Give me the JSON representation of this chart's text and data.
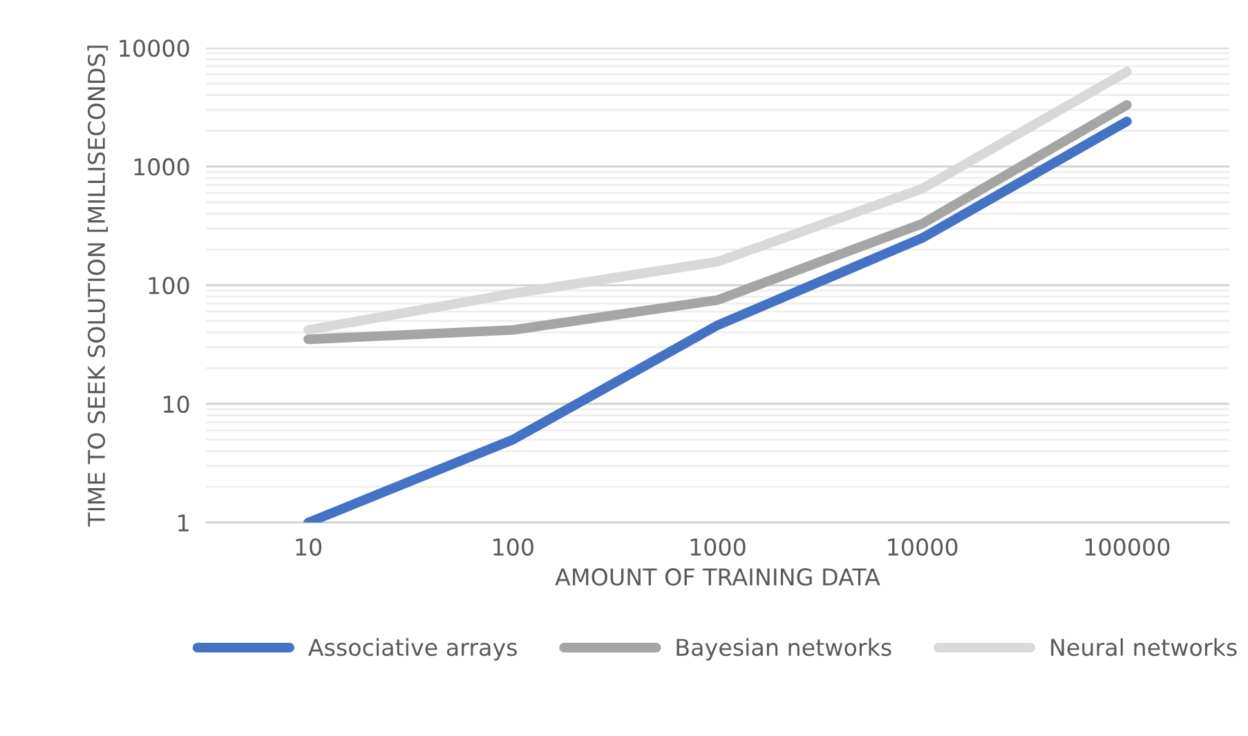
{
  "chart_data": {
    "type": "line",
    "xlabel": "AMOUNT OF TRAINING DATA",
    "ylabel": "TIME TO SEEK SOLUTION [MILLISECONDS]",
    "categories": [
      "10",
      "100",
      "1000",
      "10000",
      "100000"
    ],
    "series": [
      {
        "name": "Associative arrays",
        "color": "#4472c4",
        "values": [
          1,
          5,
          46,
          250,
          2400
        ]
      },
      {
        "name": "Bayesian networks",
        "color": "#a5a5a5",
        "values": [
          35,
          42,
          75,
          330,
          3300
        ]
      },
      {
        "name": "Neural networks",
        "color": "#d9d9d9",
        "values": [
          42,
          85,
          158,
          650,
          6300
        ]
      }
    ],
    "log": "y",
    "ylim": [
      1,
      10000
    ],
    "yticks": [
      1,
      10,
      100,
      1000,
      10000
    ],
    "grid": "y",
    "legend": "bottom",
    "marker": "none",
    "line_style": "solid"
  }
}
